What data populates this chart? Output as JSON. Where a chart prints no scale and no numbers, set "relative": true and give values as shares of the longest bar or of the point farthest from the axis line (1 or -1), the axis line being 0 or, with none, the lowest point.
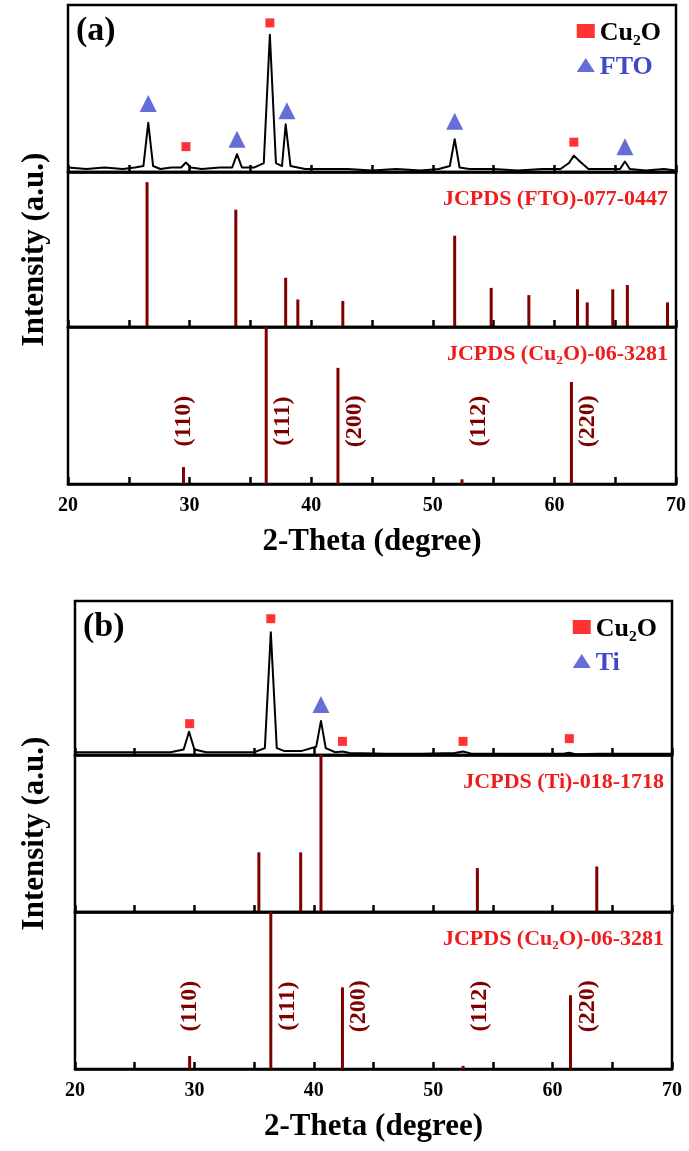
{
  "chart_data": [
    {
      "type": "line",
      "relative": true,
      "annotations": [
        "(a)"
      ],
      "xlim": [
        20,
        70
      ],
      "xticks": [
        20,
        {
          "value": 25,
          "label": null
        },
        30,
        {
          "value": 35,
          "label": null
        },
        40,
        {
          "value": 45,
          "label": null
        },
        50,
        {
          "value": 55,
          "label": null
        },
        60,
        {
          "value": 65,
          "label": null
        },
        70
      ],
      "tick_labels": false,
      "legend": "top right",
      "series": [
        {
          "type": "line",
          "color": "#000000",
          "marker": "none",
          "x": [
            20,
            21.5,
            23,
            24.5,
            25.5,
            26.2,
            26.6,
            27.0,
            27.6,
            28.5,
            29.3,
            29.7,
            30.1,
            31,
            32.5,
            33.5,
            33.9,
            34.3,
            35.3,
            36.1,
            36.6,
            37.1,
            37.6,
            37.9,
            38.3,
            39.5,
            41,
            43,
            45,
            47,
            49,
            50.5,
            51.4,
            51.8,
            52.2,
            53,
            55,
            57,
            59,
            60.5,
            61.2,
            61.6,
            62.1,
            62.8,
            64,
            65.4,
            65.8,
            66.2,
            67.5,
            69,
            70
          ],
          "values": [
            0.03,
            0.02,
            0.03,
            0.02,
            0.03,
            0.04,
            0.33,
            0.04,
            0.02,
            0.03,
            0.03,
            0.064,
            0.03,
            0.02,
            0.03,
            0.03,
            0.12,
            0.03,
            0.03,
            0.06,
            0.92,
            0.06,
            0.04,
            0.32,
            0.04,
            0.02,
            0.02,
            0.02,
            0.01,
            0.02,
            0.01,
            0.02,
            0.04,
            0.22,
            0.03,
            0.02,
            0.02,
            0.01,
            0.02,
            0.02,
            0.06,
            0.11,
            0.07,
            0.02,
            0.02,
            0.02,
            0.07,
            0.02,
            0.01,
            0.02,
            0.01
          ]
        },
        {
          "type": "scatter",
          "name": "Cu₂O",
          "color": "#ff0000",
          "marker": "square",
          "x": [
            29.7,
            36.6,
            61.6
          ],
          "values": [
            0.17,
            1.0,
            0.2
          ]
        },
        {
          "type": "scatter",
          "name": "FTO",
          "color": "#3f48cc",
          "marker": "triangle",
          "x": [
            26.6,
            33.9,
            38.0,
            51.8,
            65.8
          ],
          "values": [
            0.46,
            0.22,
            0.41,
            0.34,
            0.17
          ]
        }
      ]
    },
    {
      "type": "bar",
      "relative": true,
      "ylabel": "Intensity (a.u.)",
      "annotations": [
        "JCPDS (FTO)-077-0447"
      ],
      "xlim": [
        20,
        70
      ],
      "xticks": [
        20,
        {
          "value": 25,
          "label": null
        },
        30,
        {
          "value": 35,
          "label": null
        },
        40,
        {
          "value": 45,
          "label": null
        },
        50,
        {
          "value": 55,
          "label": null
        },
        60,
        {
          "value": 65,
          "label": null
        },
        70
      ],
      "tick_labels": false,
      "series": [
        {
          "color": "#800000",
          "x": [
            26.5,
            33.8,
            37.9,
            38.9,
            42.6,
            51.8,
            54.8,
            57.9,
            61.9,
            62.7,
            64.8,
            66.0,
            69.3
          ],
          "values": [
            1.0,
            0.81,
            0.34,
            0.19,
            0.18,
            0.63,
            0.27,
            0.22,
            0.26,
            0.17,
            0.26,
            0.29,
            0.17
          ]
        }
      ]
    },
    {
      "type": "bar",
      "relative": true,
      "xlabel": "2-Theta (degree)",
      "annotations": [
        "JCPDS (Cu₂O)-06-3281",
        "(110)",
        "(111)",
        "(200)",
        "(112)",
        "(220)"
      ],
      "xlim": [
        20,
        70
      ],
      "xticks": [
        20,
        {
          "value": 25,
          "label": null
        },
        30,
        {
          "value": 35,
          "label": null
        },
        40,
        {
          "value": 45,
          "label": null
        },
        50,
        {
          "value": 55,
          "label": null
        },
        60,
        {
          "value": 65,
          "label": null
        },
        70
      ],
      "tick_labels": "x",
      "series": [
        {
          "color": "#800000",
          "x": [
            29.5,
            36.3,
            42.2,
            52.4,
            61.4
          ],
          "values": [
            0.108,
            1.0,
            0.74,
            0.03,
            0.65
          ]
        }
      ]
    },
    {
      "type": "line",
      "relative": true,
      "annotations": [
        "(b)"
      ],
      "xlim": [
        20,
        70
      ],
      "xticks": [
        20,
        {
          "value": 25,
          "label": null
        },
        30,
        {
          "value": 35,
          "label": null
        },
        40,
        {
          "value": 45,
          "label": null
        },
        50,
        {
          "value": 55,
          "label": null
        },
        60,
        {
          "value": 65,
          "label": null
        },
        70
      ],
      "tick_labels": false,
      "legend": "top right",
      "series": [
        {
          "type": "line",
          "color": "#000000",
          "marker": "none",
          "x": [
            20,
            22,
            24,
            26,
            28,
            29.1,
            29.55,
            30.0,
            31,
            33,
            35,
            35.9,
            36.4,
            36.9,
            37.5,
            39,
            40.2,
            40.6,
            41.0,
            41.8,
            42.4,
            43,
            46,
            49,
            51.8,
            52.5,
            53.2,
            56,
            59,
            60.9,
            61.4,
            61.9,
            64,
            67,
            70
          ],
          "values": [
            0.02,
            0.02,
            0.02,
            0.02,
            0.02,
            0.04,
            0.17,
            0.04,
            0.02,
            0.02,
            0.02,
            0.05,
            0.9,
            0.05,
            0.03,
            0.03,
            0.06,
            0.25,
            0.05,
            0.02,
            0.025,
            0.015,
            0.01,
            0.01,
            0.015,
            0.025,
            0.01,
            0.01,
            0.01,
            0.01,
            0.016,
            0.005,
            0.01,
            0.01,
            0.01
          ]
        },
        {
          "type": "scatter",
          "name": "Cu₂O",
          "color": "#ff0000",
          "marker": "square",
          "x": [
            29.6,
            36.4,
            42.4,
            52.5,
            61.4
          ],
          "values": [
            0.23,
            1.0,
            0.1,
            0.1,
            0.12
          ]
        },
        {
          "type": "scatter",
          "name": "Ti",
          "color": "#3f48cc",
          "marker": "triangle",
          "x": [
            40.6
          ],
          "values": [
            0.37
          ]
        }
      ]
    },
    {
      "type": "bar",
      "relative": true,
      "ylabel": "Intensity (a.u.)",
      "annotations": [
        "JCPDS (Ti)-018-1718"
      ],
      "xlim": [
        20,
        70
      ],
      "xticks": [
        20,
        {
          "value": 25,
          "label": null
        },
        30,
        {
          "value": 35,
          "label": null
        },
        40,
        {
          "value": 45,
          "label": null
        },
        50,
        {
          "value": 55,
          "label": null
        },
        60,
        {
          "value": 65,
          "label": null
        },
        70
      ],
      "tick_labels": false,
      "series": [
        {
          "color": "#800000",
          "x": [
            35.4,
            38.9,
            40.6,
            53.7,
            63.7
          ],
          "values": [
            0.38,
            0.38,
            1.0,
            0.28,
            0.29
          ]
        }
      ]
    },
    {
      "type": "bar",
      "relative": true,
      "xlabel": "2-Theta (degree)",
      "annotations": [
        "JCPDS (Cu₂O)-06-3281",
        "(110)",
        "(111)",
        "(200)",
        "(112)",
        "(220)"
      ],
      "xlim": [
        20,
        70
      ],
      "xticks": [
        20,
        {
          "value": 25,
          "label": null
        },
        30,
        {
          "value": 35,
          "label": null
        },
        40,
        {
          "value": 45,
          "label": null
        },
        50,
        {
          "value": 55,
          "label": null
        },
        60,
        {
          "value": 65,
          "label": null
        },
        70
      ],
      "tick_labels": "x",
      "series": [
        {
          "color": "#800000",
          "x": [
            29.6,
            36.4,
            42.4,
            52.5,
            61.5
          ],
          "values": [
            0.083,
            1.0,
            0.52,
            0.02,
            0.47
          ]
        }
      ]
    }
  ]
}
